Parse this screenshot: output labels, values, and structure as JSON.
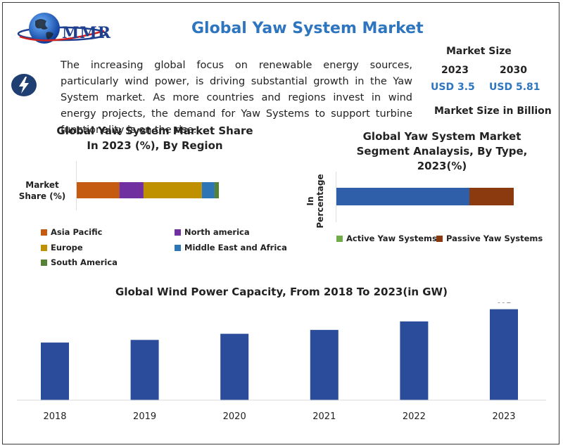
{
  "header": {
    "logo_text": "MMR",
    "title": "Global Yaw System Market",
    "bolt_icon": "lightning-icon"
  },
  "intro": "The increasing global focus on renewable energy sources, particularly wind power, is driving substantial growth in the Yaw System market. As more countries and regions invest in wind energy projects, the demand for Yaw Systems to support turbine functionality is on the rise.",
  "market_size": {
    "label": "Market Size",
    "year_a": "2023",
    "year_b": "2030",
    "value_a": "USD 3.5",
    "value_b": "USD 5.81",
    "unit_label": "Market Size in Billion"
  },
  "colors": {
    "asia_pacific": "#c55a11",
    "north_america": "#7030a0",
    "europe": "#bf9000",
    "middle_east_africa": "#2e75b6",
    "south_america": "#548235",
    "active": "#2e5fa8",
    "passive": "#8b3a0f",
    "active_legend": "#70ad47",
    "wind_bar": "#2b4c9a"
  },
  "chart_data": [
    {
      "type": "bar",
      "orientation": "horizontal-stacked",
      "title": "Global Yaw System Market Share In 2023 (%), By Region",
      "ylabel": "Market Share (%)",
      "categories": [
        "Market Share (%)"
      ],
      "series": [
        {
          "name": "Asia Pacific",
          "values": [
            30
          ]
        },
        {
          "name": "North america",
          "values": [
            17
          ]
        },
        {
          "name": "Europe",
          "values": [
            41
          ]
        },
        {
          "name": "Middle East and Africa",
          "values": [
            9
          ]
        },
        {
          "name": "South America",
          "values": [
            3
          ]
        }
      ],
      "legend": "bottom"
    },
    {
      "type": "bar",
      "orientation": "horizontal-stacked",
      "title": "Global Yaw System Market Segment Analaysis, By Type, 2023(%)",
      "ylabel": "In Percentage",
      "categories": [
        "In Percentage"
      ],
      "series": [
        {
          "name": "Active Yaw Systems",
          "values": [
            75
          ]
        },
        {
          "name": "Passive Yaw Systems",
          "values": [
            25
          ]
        }
      ],
      "legend": "bottom"
    },
    {
      "type": "bar",
      "title": "Global Wind Power Capacity, From 2018 To 2023(in GW)",
      "categories": [
        "2018",
        "2019",
        "2020",
        "2021",
        "2022",
        "2023"
      ],
      "values": [
        565,
        591,
        651,
        689,
        772,
        892
      ],
      "data_labels": {
        "2023": "892"
      },
      "ylim": [
        0,
        1000
      ],
      "grid": false
    }
  ]
}
